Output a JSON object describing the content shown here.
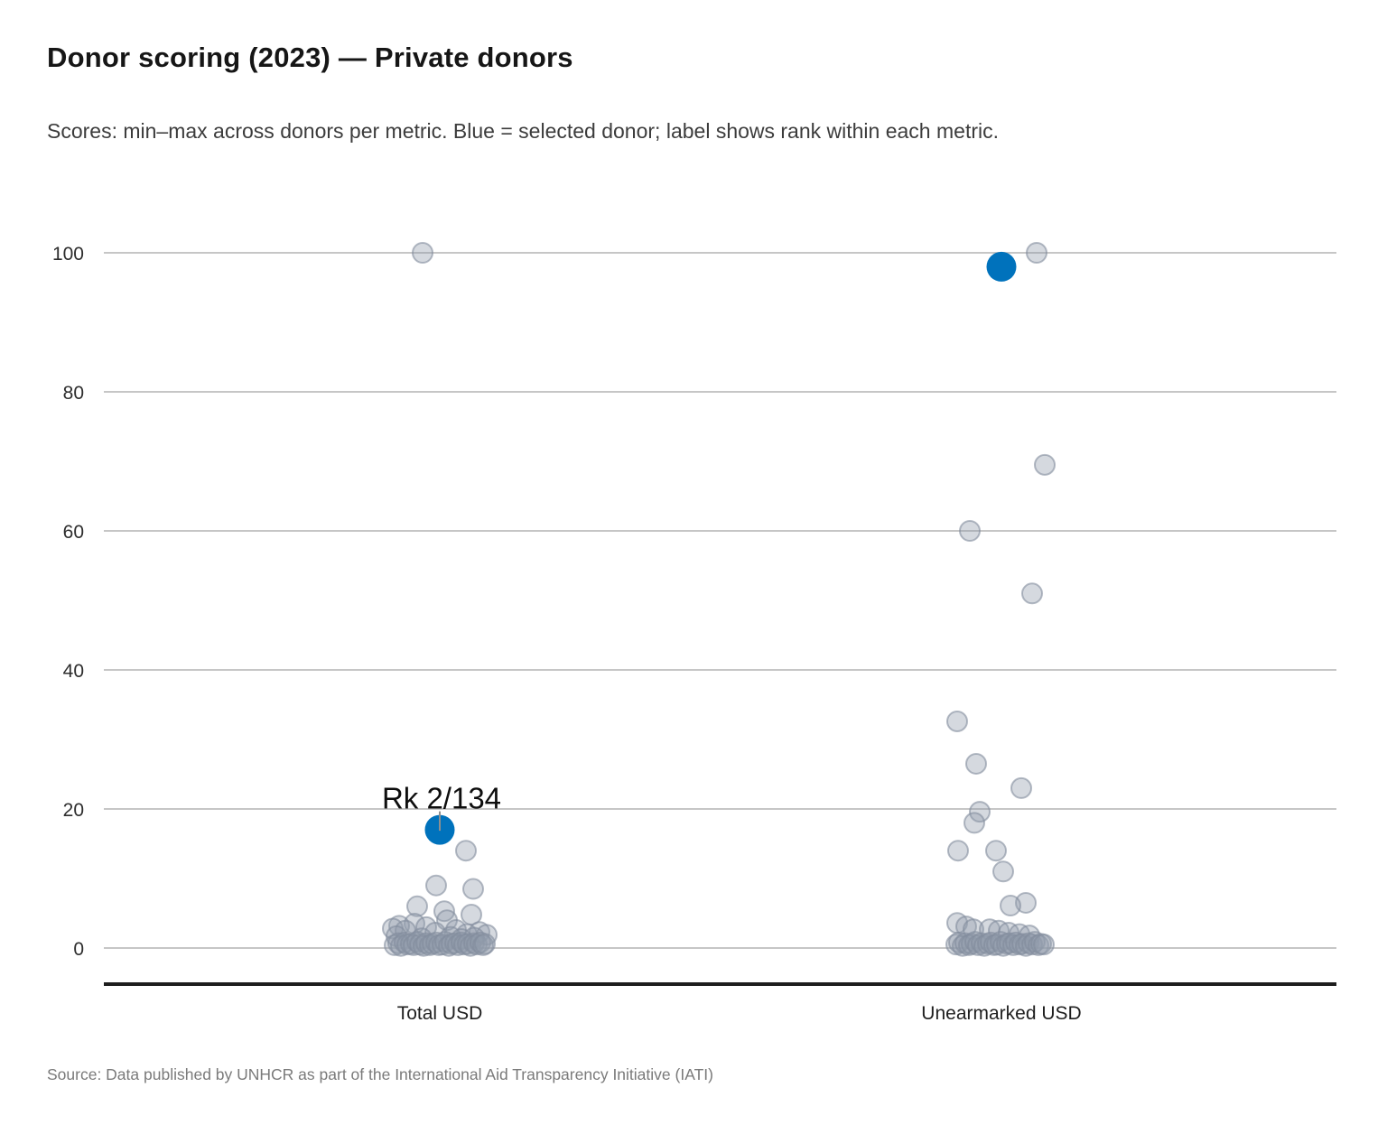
{
  "chart_data": {
    "type": "scatter",
    "variant": "strip-plot",
    "title": "Donor scoring (2023) — Private donors",
    "subtitle": "Scores: min–max across donors per metric. Blue = selected donor; label shows rank within each metric.",
    "source": "Source: Data published by UNHCR as part of the International Aid Transparency Initiative (IATI)",
    "ylim": [
      0,
      100
    ],
    "yticks": [
      0,
      20,
      40,
      60,
      80,
      100
    ],
    "grid": true,
    "legend": "none",
    "categories": [
      "Total USD",
      "Unearmarked USD"
    ],
    "colors": {
      "selected_donor": "#0072bc",
      "other_donors": "#99a3b2",
      "gridline": "#c6c6c6"
    },
    "point_format": "[score, x_offset_px_from_category_center]",
    "series": [
      {
        "name": "Total USD",
        "selected": {
          "score": 17,
          "dx": 0,
          "rank_label": "Rk 2/134"
        },
        "points": [
          [
            100,
            -19
          ],
          [
            14,
            29
          ],
          [
            9,
            -4
          ],
          [
            8.5,
            37
          ],
          [
            6,
            -25
          ],
          [
            5.3,
            5
          ],
          [
            4.8,
            35
          ],
          [
            4,
            8
          ],
          [
            3.5,
            -28
          ],
          [
            3.2,
            -45
          ],
          [
            3,
            -15
          ],
          [
            2.8,
            -52
          ],
          [
            2.6,
            18
          ],
          [
            2.5,
            -38
          ],
          [
            2.3,
            44
          ],
          [
            2.2,
            -5
          ],
          [
            2,
            30
          ],
          [
            1.9,
            52
          ],
          [
            1.7,
            -48
          ],
          [
            1.6,
            12
          ],
          [
            1.5,
            38
          ],
          [
            1.4,
            -20
          ],
          [
            1.3,
            24
          ],
          [
            0.4,
            -50
          ],
          [
            0.7,
            -46
          ],
          [
            0.3,
            -43
          ],
          [
            0.8,
            -39
          ],
          [
            0.5,
            -36
          ],
          [
            0.6,
            -32
          ],
          [
            0.4,
            -29
          ],
          [
            0.9,
            -25
          ],
          [
            0.5,
            -22
          ],
          [
            0.3,
            -18
          ],
          [
            0.7,
            -15
          ],
          [
            0.4,
            -11
          ],
          [
            0.6,
            -8
          ],
          [
            0.8,
            -4
          ],
          [
            0.4,
            -1
          ],
          [
            0.5,
            3
          ],
          [
            0.9,
            6
          ],
          [
            0.3,
            10
          ],
          [
            0.6,
            13
          ],
          [
            0.7,
            17
          ],
          [
            0.4,
            20
          ],
          [
            0.8,
            24
          ],
          [
            0.5,
            27
          ],
          [
            0.6,
            31
          ],
          [
            0.3,
            34
          ],
          [
            0.7,
            38
          ],
          [
            0.5,
            41
          ],
          [
            0.8,
            45
          ],
          [
            0.4,
            48
          ],
          [
            0.6,
            50
          ]
        ]
      },
      {
        "name": "Unearmarked USD",
        "selected": {
          "score": 98,
          "dx": 0,
          "rank_label": ""
        },
        "points": [
          [
            100,
            39
          ],
          [
            69.5,
            48
          ],
          [
            60,
            -35
          ],
          [
            51,
            34
          ],
          [
            32.6,
            -49
          ],
          [
            26.5,
            -28
          ],
          [
            23,
            22
          ],
          [
            19.6,
            -24
          ],
          [
            18,
            -30
          ],
          [
            14,
            -48
          ],
          [
            14,
            -6
          ],
          [
            11,
            2
          ],
          [
            6.5,
            27
          ],
          [
            6.1,
            10
          ],
          [
            3.6,
            -49
          ],
          [
            3.1,
            -39
          ],
          [
            2.7,
            -31
          ],
          [
            2.7,
            -13
          ],
          [
            2.5,
            -3
          ],
          [
            2.2,
            8
          ],
          [
            2,
            20
          ],
          [
            1.8,
            31
          ],
          [
            0.5,
            -50
          ],
          [
            0.8,
            -47
          ],
          [
            0.3,
            -43
          ],
          [
            0.7,
            -40
          ],
          [
            0.4,
            -36
          ],
          [
            0.6,
            -33
          ],
          [
            0.9,
            -29
          ],
          [
            0.4,
            -26
          ],
          [
            0.7,
            -22
          ],
          [
            0.3,
            -19
          ],
          [
            0.6,
            -15
          ],
          [
            0.8,
            -12
          ],
          [
            0.4,
            -8
          ],
          [
            0.5,
            -5
          ],
          [
            0.9,
            -1
          ],
          [
            0.3,
            2
          ],
          [
            0.6,
            6
          ],
          [
            0.7,
            9
          ],
          [
            0.4,
            13
          ],
          [
            0.8,
            16
          ],
          [
            0.5,
            20
          ],
          [
            0.6,
            23
          ],
          [
            0.3,
            27
          ],
          [
            0.7,
            30
          ],
          [
            0.5,
            34
          ],
          [
            0.9,
            37
          ],
          [
            0.4,
            41
          ],
          [
            0.6,
            44
          ],
          [
            0.5,
            47
          ]
        ]
      }
    ]
  }
}
